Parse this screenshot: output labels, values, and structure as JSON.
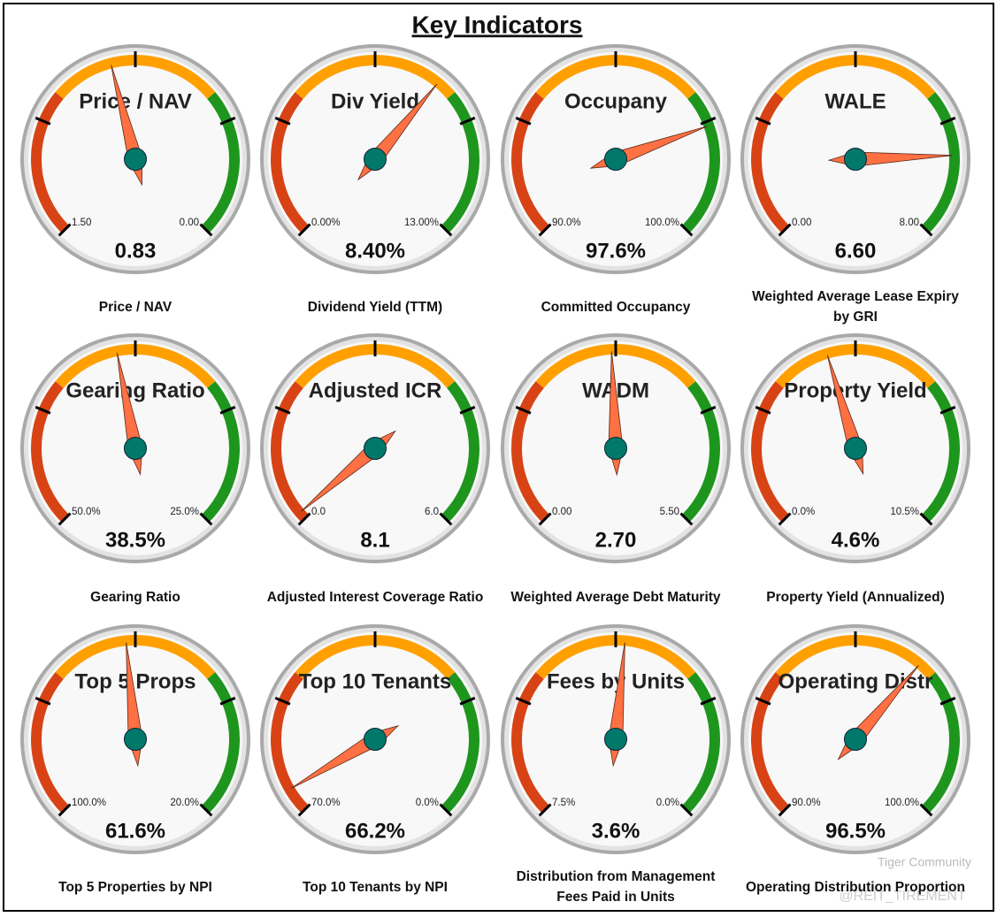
{
  "title": "Key Indicators",
  "watermark": [
    "Tiger Community",
    "@REIT_TIREMENT"
  ],
  "chart_data": [
    {
      "type": "gauge",
      "title": "Price / NAV",
      "caption": "Price / NAV",
      "values": [
        0.83
      ],
      "ylim": [
        1.5,
        0
      ],
      "yticks": [
        {
          "value": 1.5,
          "label": "1.50"
        },
        {
          "value": 0,
          "label": "0.00"
        }
      ]
    },
    {
      "type": "gauge",
      "title": "Div Yield",
      "caption": "Dividend Yield (TTM)",
      "values": [
        8.4
      ],
      "value_labels": [
        "8.40%"
      ],
      "ylim": [
        0,
        13
      ],
      "yticks": [
        {
          "value": 0,
          "label": "0.00%"
        },
        {
          "value": 13,
          "label": "13.00%"
        }
      ]
    },
    {
      "type": "gauge",
      "title": "Occupany",
      "caption": "Committed Occupancy",
      "values": [
        97.6
      ],
      "value_labels": [
        "97.6%"
      ],
      "ylim": [
        90,
        100
      ],
      "yticks": [
        {
          "value": 90,
          "label": "90.0%"
        },
        {
          "value": 100,
          "label": "100.0%"
        }
      ]
    },
    {
      "type": "gauge",
      "title": "WALE",
      "caption": "Weighted Average Lease Expiry by GRI",
      "values": [
        6.6
      ],
      "value_labels": [
        "6.60"
      ],
      "ylim": [
        0,
        8
      ],
      "yticks": [
        {
          "value": 0,
          "label": "0.00"
        },
        {
          "value": 8,
          "label": "8.00"
        }
      ]
    },
    {
      "type": "gauge",
      "title": "Gearing Ratio",
      "caption": "Gearing Ratio",
      "values": [
        38.5
      ],
      "value_labels": [
        "38.5%"
      ],
      "ylim": [
        50,
        25
      ],
      "yticks": [
        {
          "value": 50,
          "label": "50.0%"
        },
        {
          "value": 25,
          "label": "25.0%"
        }
      ]
    },
    {
      "type": "gauge",
      "title": "Adjusted ICR",
      "caption": "Adjusted Interest Coverage Ratio",
      "values": [
        8.1
      ],
      "ylim": [
        0,
        6
      ],
      "yticks": [
        {
          "value": 0,
          "label": "0.0"
        },
        {
          "value": 6,
          "label": "6.0"
        }
      ]
    },
    {
      "type": "gauge",
      "title": "WADM",
      "caption": "Weighted Average Debt Maturity",
      "values": [
        2.7
      ],
      "value_labels": [
        "2.70"
      ],
      "ylim": [
        0,
        5.5
      ],
      "yticks": [
        {
          "value": 0,
          "label": "0.00"
        },
        {
          "value": 5.5,
          "label": "5.50"
        }
      ]
    },
    {
      "type": "gauge",
      "title": "Property Yield",
      "caption": "Property Yield (Annualized)",
      "values": [
        4.6
      ],
      "value_labels": [
        "4.6%"
      ],
      "ylim": [
        0,
        10.5
      ],
      "yticks": [
        {
          "value": 0,
          "label": "0.0%"
        },
        {
          "value": 10.5,
          "label": "10.5%"
        }
      ]
    },
    {
      "type": "gauge",
      "title": "Top 5 Props",
      "caption": "Top 5 Properties by NPI",
      "values": [
        61.6
      ],
      "value_labels": [
        "61.6%"
      ],
      "ylim": [
        100,
        20
      ],
      "yticks": [
        {
          "value": 100,
          "label": "100.0%"
        },
        {
          "value": 20,
          "label": "20.0%"
        }
      ]
    },
    {
      "type": "gauge",
      "title": "Top 10 Tenants",
      "caption": "Top 10 Tenants by NPI",
      "values": [
        66.2
      ],
      "value_labels": [
        "66.2%"
      ],
      "ylim": [
        70,
        0
      ],
      "yticks": [
        {
          "value": 70,
          "label": "70.0%"
        },
        {
          "value": 0,
          "label": "0.0%"
        }
      ]
    },
    {
      "type": "gauge",
      "title": "Fees by Units",
      "caption": "Distribution from Management Fees Paid in Units",
      "values": [
        3.6
      ],
      "value_labels": [
        "3.6%"
      ],
      "ylim": [
        7.5,
        0
      ],
      "yticks": [
        {
          "value": 7.5,
          "label": "7.5%"
        },
        {
          "value": 0,
          "label": "0.0%"
        }
      ]
    },
    {
      "type": "gauge",
      "title": "Operating Distr",
      "caption": "Operating Distribution Proportion",
      "values": [
        96.5
      ],
      "value_labels": [
        "96.5%"
      ],
      "ylim": [
        90,
        100
      ],
      "yticks": [
        {
          "value": 90,
          "label": "90.0%"
        },
        {
          "value": 100,
          "label": "100.0%"
        }
      ]
    }
  ]
}
